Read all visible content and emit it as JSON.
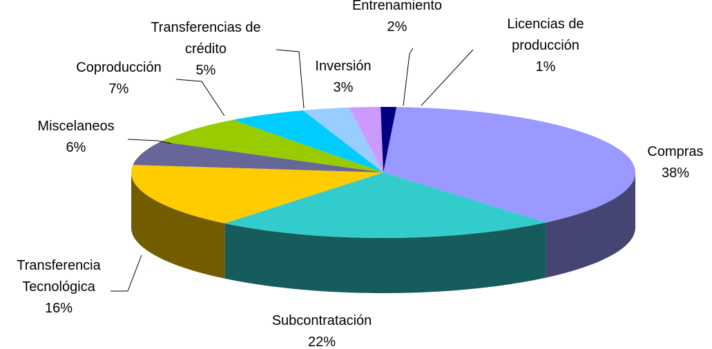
{
  "chart_data": {
    "type": "pie3d",
    "categories": [
      "Compras",
      "Subcontratación",
      "Transferencia Tecnológica",
      "Miscelaneos",
      "Coproducción",
      "Transferencias de crédito",
      "Inversión",
      "Entrenamiento",
      "Licencias de producción"
    ],
    "values": [
      38,
      22,
      16,
      6,
      7,
      5,
      3,
      2,
      1
    ],
    "value_labels": [
      "38%",
      "22%",
      "16%",
      "6%",
      "7%",
      "5%",
      "3%",
      "2%",
      "1%"
    ],
    "colors": [
      "#9999ff",
      "#33cccc",
      "#ffcc00",
      "#666699",
      "#99cc00",
      "#00ccff",
      "#99ccff",
      "#cc99ff",
      "#000080"
    ]
  }
}
